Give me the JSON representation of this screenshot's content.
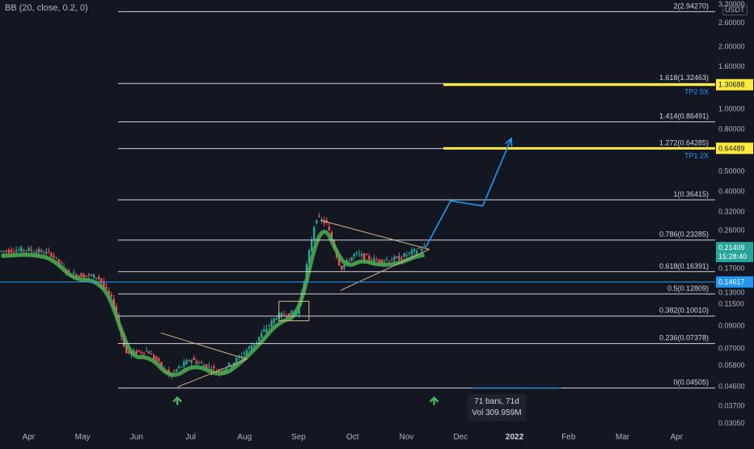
{
  "indicator": {
    "label": "BB (20, close, 0.2, 0)"
  },
  "currency": "USDT",
  "colors": {
    "background": "#131722",
    "candle_up": "#26a69a",
    "candle_down": "#ef5350",
    "bb_line": "#4caf50",
    "fib_line": "#d1d4dc",
    "target_band": "#ffeb3b",
    "projection": "#2196f3",
    "triangle": "#d9b38c",
    "arrow": "#4caf50"
  },
  "price_badges": {
    "last_price": "0.21409",
    "countdown": "15:28:40",
    "level": "0.14617",
    "tp1": "0.64489",
    "tp2": "1.30688"
  },
  "target_labels": {
    "tp1": "TP1 2X",
    "tp2": "TP2 5X"
  },
  "tooltip": {
    "bars": "71 bars, 71d",
    "vol": "Vol 309.959M"
  },
  "chart_data": {
    "type": "candlestick",
    "y_scale": "log",
    "ylim": [
      0.0305,
      3.2
    ],
    "x_labels": [
      "Apr",
      "May",
      "Jun",
      "Jul",
      "Aug",
      "Sep",
      "Oct",
      "Nov",
      "Dec",
      "2022",
      "Feb",
      "Mar",
      "Apr"
    ],
    "y_tick_labels": [
      "3.20000",
      "2.60000",
      "2.00000",
      "1.60000",
      "1.30000",
      "1.00000",
      "0.80000",
      "0.65000",
      "0.50000",
      "0.40000",
      "0.32000",
      "0.26000",
      "0.21000",
      "0.17000",
      "0.13000",
      "0.11500",
      "0.09000",
      "0.07000",
      "0.05800",
      "0.04600",
      "0.03700",
      "0.03050"
    ],
    "y_tick_values": [
      3.2,
      2.6,
      2.0,
      1.6,
      1.3,
      1.0,
      0.8,
      0.65,
      0.5,
      0.4,
      0.32,
      0.26,
      0.21,
      0.17,
      0.13,
      0.115,
      0.09,
      0.07,
      0.058,
      0.046,
      0.037,
      0.0305
    ],
    "fib_levels": [
      {
        "label": "2(2.94270)",
        "value": 2.9427
      },
      {
        "label": "1.618(1.32463)",
        "value": 1.32463
      },
      {
        "label": "1.414(0.86491)",
        "value": 0.86491
      },
      {
        "label": "1.272(0.64285)",
        "value": 0.64285
      },
      {
        "label": "1(0.36415)",
        "value": 0.36415
      },
      {
        "label": "0.786(0.23285)",
        "value": 0.23285
      },
      {
        "label": "0.618(0.16391)",
        "value": 0.16391
      },
      {
        "label": "0.5(0.12809)",
        "value": 0.12809
      },
      {
        "label": "0.382(0.10010)",
        "value": 0.1001
      },
      {
        "label": "0.236(0.07378)",
        "value": 0.07378
      },
      {
        "label": "0(0.04505)",
        "value": 0.04505
      }
    ],
    "projection_path": [
      {
        "t": 0.595,
        "v": 0.2141
      },
      {
        "t": 0.63,
        "v": 0.36
      },
      {
        "t": 0.675,
        "v": 0.34
      },
      {
        "t": 0.715,
        "v": 0.72
      }
    ]
  }
}
